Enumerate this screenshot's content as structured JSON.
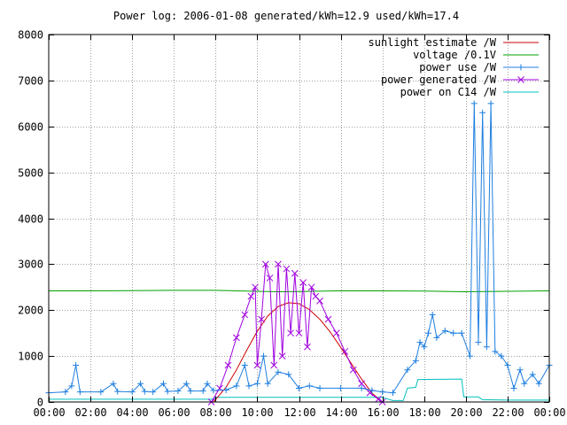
{
  "chart_data": {
    "type": "line",
    "title": "Power log: 2006-01-08 generated/kWh=12.9 used/kWh=17.4",
    "xlabel": "",
    "ylabel": "",
    "xlim": [
      0,
      24
    ],
    "ylim": [
      0,
      8000
    ],
    "x_ticks": [
      "00:00",
      "02:00",
      "04:00",
      "06:00",
      "08:00",
      "10:00",
      "12:00",
      "14:00",
      "16:00",
      "18:00",
      "20:00",
      "22:00",
      "00:00"
    ],
    "y_ticks": [
      "0",
      "1000",
      "2000",
      "3000",
      "4000",
      "5000",
      "6000",
      "7000",
      "8000"
    ],
    "grid": true,
    "legend_position": "top-right",
    "series": [
      {
        "name": "sunlight estimate /W",
        "color": "#d00000",
        "marker": "none",
        "points": [
          [
            7.9,
            0
          ],
          [
            8.5,
            320
          ],
          [
            9,
            700
          ],
          [
            9.5,
            1130
          ],
          [
            10,
            1540
          ],
          [
            10.5,
            1870
          ],
          [
            11,
            2080
          ],
          [
            11.5,
            2160
          ],
          [
            12,
            2140
          ],
          [
            12.5,
            2010
          ],
          [
            13,
            1800
          ],
          [
            13.5,
            1520
          ],
          [
            14,
            1190
          ],
          [
            14.5,
            840
          ],
          [
            15,
            500
          ],
          [
            15.5,
            190
          ],
          [
            16,
            0
          ]
        ]
      },
      {
        "name": "voltage /0.1V",
        "color": "#00a000",
        "marker": "none",
        "points": [
          [
            0,
            2420
          ],
          [
            2,
            2420
          ],
          [
            4,
            2425
          ],
          [
            6,
            2430
          ],
          [
            8,
            2430
          ],
          [
            9,
            2420
          ],
          [
            10,
            2410
          ],
          [
            11,
            2400
          ],
          [
            12,
            2405
          ],
          [
            14,
            2420
          ],
          [
            16,
            2420
          ],
          [
            18,
            2415
          ],
          [
            20,
            2400
          ],
          [
            22,
            2410
          ],
          [
            24,
            2420
          ]
        ]
      },
      {
        "name": "power use /W",
        "color": "#1f7fe0",
        "marker": "plus",
        "points": [
          [
            0,
            200
          ],
          [
            0.8,
            220
          ],
          [
            1.1,
            350
          ],
          [
            1.3,
            800
          ],
          [
            1.5,
            220
          ],
          [
            2.5,
            220
          ],
          [
            3.1,
            400
          ],
          [
            3.3,
            230
          ],
          [
            4,
            220
          ],
          [
            4.4,
            400
          ],
          [
            4.6,
            230
          ],
          [
            5,
            220
          ],
          [
            5.5,
            400
          ],
          [
            5.7,
            230
          ],
          [
            6.2,
            240
          ],
          [
            6.6,
            400
          ],
          [
            6.8,
            240
          ],
          [
            7.4,
            240
          ],
          [
            7.6,
            400
          ],
          [
            7.9,
            250
          ],
          [
            8.5,
            260
          ],
          [
            9,
            350
          ],
          [
            9.4,
            800
          ],
          [
            9.6,
            350
          ],
          [
            10,
            400
          ],
          [
            10.3,
            1000
          ],
          [
            10.5,
            400
          ],
          [
            11,
            650
          ],
          [
            11.5,
            600
          ],
          [
            12,
            300
          ],
          [
            12.5,
            350
          ],
          [
            13,
            300
          ],
          [
            14,
            300
          ],
          [
            15,
            300
          ],
          [
            15.5,
            250
          ],
          [
            16,
            220
          ],
          [
            16.5,
            200
          ],
          [
            17.2,
            700
          ],
          [
            17.6,
            900
          ],
          [
            17.8,
            1300
          ],
          [
            18,
            1200
          ],
          [
            18.2,
            1500
          ],
          [
            18.4,
            1900
          ],
          [
            18.6,
            1400
          ],
          [
            19,
            1550
          ],
          [
            19.4,
            1500
          ],
          [
            19.8,
            1500
          ],
          [
            20.2,
            1000
          ],
          [
            20.4,
            6500
          ],
          [
            20.6,
            1300
          ],
          [
            20.8,
            6300
          ],
          [
            21,
            1200
          ],
          [
            21.2,
            6500
          ],
          [
            21.4,
            1100
          ],
          [
            21.7,
            1000
          ],
          [
            22,
            800
          ],
          [
            22.3,
            300
          ],
          [
            22.6,
            700
          ],
          [
            22.8,
            400
          ],
          [
            23.2,
            600
          ],
          [
            23.5,
            400
          ],
          [
            24,
            800
          ]
        ]
      },
      {
        "name": "power generated /W",
        "color": "#a000e0",
        "marker": "cross",
        "points": [
          [
            7.8,
            0
          ],
          [
            8.2,
            300
          ],
          [
            8.6,
            800
          ],
          [
            9,
            1400
          ],
          [
            9.4,
            1900
          ],
          [
            9.7,
            2300
          ],
          [
            9.9,
            2500
          ],
          [
            10,
            800
          ],
          [
            10.2,
            1800
          ],
          [
            10.4,
            3000
          ],
          [
            10.6,
            2700
          ],
          [
            10.8,
            800
          ],
          [
            11,
            3000
          ],
          [
            11.2,
            1000
          ],
          [
            11.4,
            2900
          ],
          [
            11.6,
            1500
          ],
          [
            11.8,
            2800
          ],
          [
            12,
            1500
          ],
          [
            12.2,
            2600
          ],
          [
            12.4,
            1200
          ],
          [
            12.6,
            2500
          ],
          [
            12.8,
            2300
          ],
          [
            13,
            2200
          ],
          [
            13.4,
            1800
          ],
          [
            13.8,
            1500
          ],
          [
            14.2,
            1100
          ],
          [
            14.6,
            700
          ],
          [
            15,
            400
          ],
          [
            15.4,
            200
          ],
          [
            15.8,
            60
          ],
          [
            16,
            0
          ]
        ]
      },
      {
        "name": "power on C14 /W",
        "color": "#00c0c0",
        "marker": "none",
        "points": [
          [
            0,
            60
          ],
          [
            7.9,
            60
          ],
          [
            8,
            100
          ],
          [
            16,
            100
          ],
          [
            16.5,
            30
          ],
          [
            17,
            30
          ],
          [
            17.2,
            300
          ],
          [
            17.6,
            320
          ],
          [
            17.7,
            490
          ],
          [
            19.8,
            500
          ],
          [
            19.9,
            110
          ],
          [
            20.6,
            110
          ],
          [
            20.8,
            50
          ],
          [
            22,
            40
          ],
          [
            22.8,
            40
          ],
          [
            24,
            40
          ]
        ]
      }
    ]
  }
}
